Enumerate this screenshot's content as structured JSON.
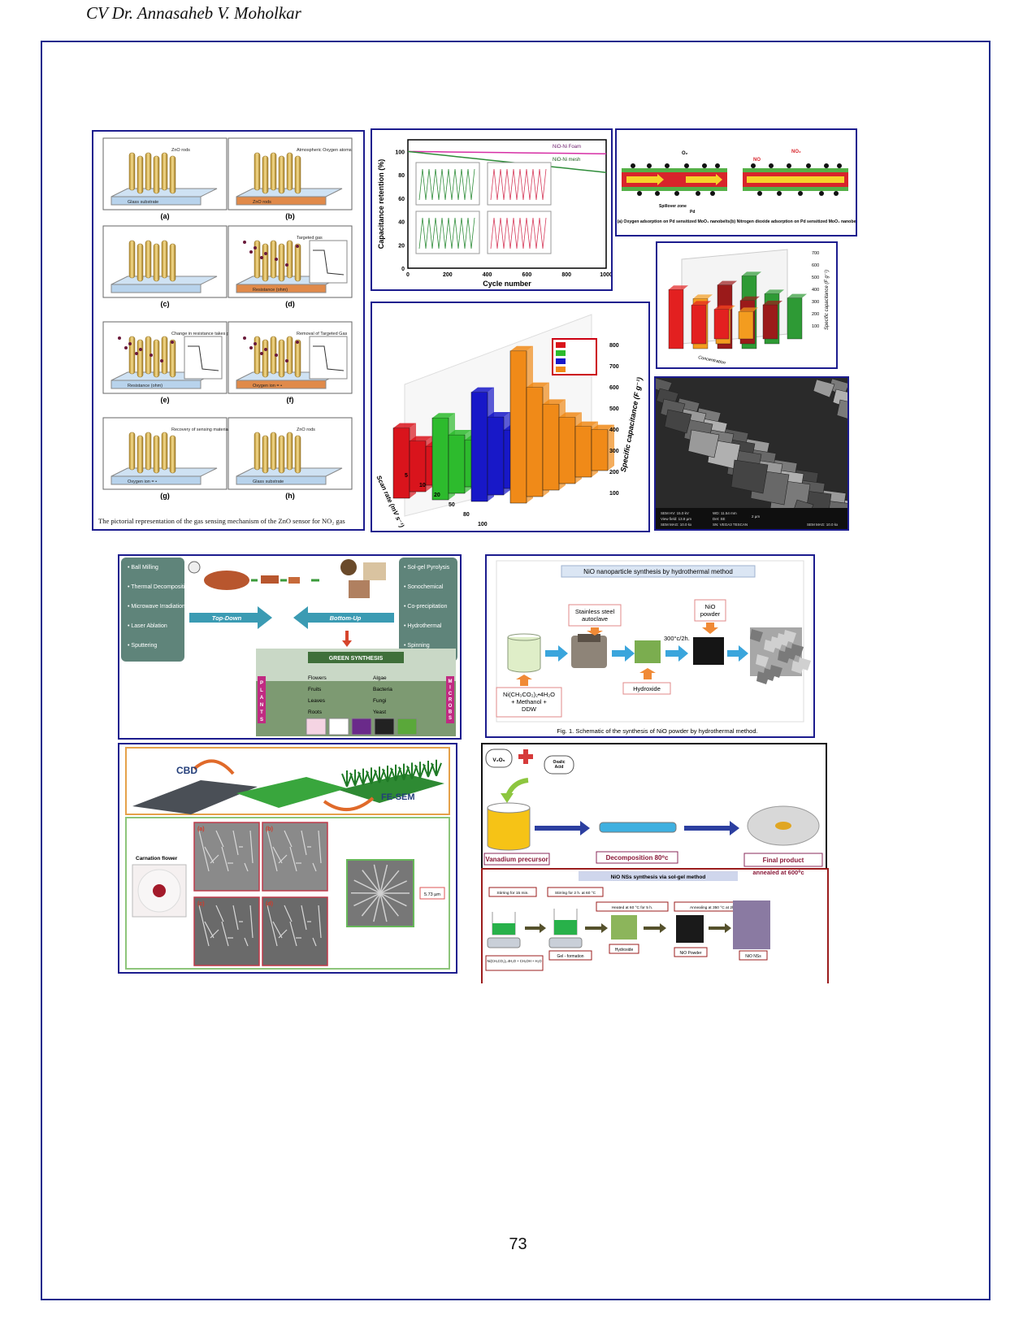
{
  "header": {
    "text": "CV Dr. Annasaheb V. Moholkar"
  },
  "page_number": "73",
  "panel_zno": {
    "tiles": [
      {
        "letter": "(a)",
        "labels": [
          "ZnO rods",
          "Glass substrate"
        ]
      },
      {
        "letter": "(b)",
        "labels": [
          "Atmospheric Oxygen atoms",
          "ZnO rods",
          "Glass substrate",
          "Heater ON"
        ]
      },
      {
        "letter": "(c)",
        "labels": []
      },
      {
        "letter": "(d)",
        "labels": [
          "Targeted gas",
          "Resistance (ohm)",
          "Time (s)",
          "Targeted Gas ON"
        ]
      },
      {
        "letter": "(e)",
        "labels": [
          "Change in resistance takes place in the sensing material",
          "Resistance (ohm)",
          "Time (s)",
          "Targeted Gas ON"
        ]
      },
      {
        "letter": "(f)",
        "labels": [
          "Removal of Targeted Gas",
          "Oxygen ion = •",
          "Resistance (ohm)",
          "Time (s)",
          "Targeted Gas OFF"
        ]
      },
      {
        "letter": "(g)",
        "labels": [
          "Recovery of sensing material",
          "Oxygen ion = •"
        ]
      },
      {
        "letter": "(h)",
        "labels": [
          "ZnO rods",
          "Glass substrate"
        ]
      }
    ],
    "caption": "The pictorial representation of the gas sensing mechanism of the ZnO sensor for NO₂ gas"
  },
  "panel_retention": {
    "ylabel": "Capacitance retention (%)",
    "xlabel": "Cycle number",
    "legend": [
      "NiO-Ni Foam",
      "NiO-Ni mesh"
    ]
  },
  "panel_pd": {
    "left_caption": "(a) Oxygen adsorption on Pd sensitized MoO₃ nanobelts",
    "right_caption": "(b) Nitrogen dioxide adsorption on Pd sensitized MoO₃ nanobelts",
    "labels": [
      "O₂",
      "Spillover zone",
      "Pd",
      "NO₂",
      "NO"
    ]
  },
  "panel_koh_small": {
    "zlabel": "Specific capacitance (F g⁻¹)",
    "xlabel": "Concentration",
    "ticks": [
      "700",
      "600",
      "500",
      "400",
      "300",
      "200",
      "100"
    ]
  },
  "panel_koh_large": {
    "zlabel": "Specific capacitance (F g⁻¹)",
    "xlabel": "Scan rate (mV s⁻¹)",
    "scan_ticks": [
      "5",
      "10",
      "20",
      "50",
      "80",
      "100"
    ],
    "z_ticks": [
      "800",
      "700",
      "600",
      "500",
      "400",
      "300",
      "200",
      "100"
    ]
  },
  "panel_sem": {
    "info": [
      "SEM HV: 15.0 kV",
      "View field: 13.8 µm",
      "SEM MAG: 10.0 kx",
      "WD: 11.54 mm",
      "Det: SE",
      "SN: VEGA3 TESCAN",
      "2 µm",
      "SEM MAG: 10.0 kx"
    ]
  },
  "panel_green": {
    "left_list": [
      "Ball Milling",
      "Thermal Decomposition",
      "Microwave Irradiation",
      "Laser Ablation",
      "Sputtering"
    ],
    "right_list": [
      "Sol-gel Pyrolysis",
      "Sonochemical",
      "Co-precipitation",
      "Hydrothermal",
      "Spinning"
    ],
    "top_down": "Top-Down",
    "bottom_up": "Bottom-Up",
    "green": "GREEN SYNTHESIS",
    "plants_items": [
      "Flowers",
      "Fruits",
      "Leaves",
      "Roots"
    ],
    "microbes_items": [
      "Algae",
      "Bacteria",
      "Fungi",
      "Yeast"
    ],
    "plants": "PLANTS",
    "microbes": "MICROBS"
  },
  "panel_nio_hydro": {
    "title": "NiO nanoparticle synthesis by hydrothermal method",
    "autoclave": "Stainless steel autoclave",
    "powder": "NiO powder",
    "temp": "300°c/2h.",
    "hydroxide": "Hydroxide",
    "precursor": [
      "Ni(CH₃CO₂)₂•4H₂O",
      "+ Methanol +",
      "DDW"
    ],
    "caption": "Fig. 1. Schematic of the synthesis of NiO powder by hydrothermal method."
  },
  "panel_cbd": {
    "cbd": "CBD",
    "fesem": "FE-SEM",
    "flower": "Carnation flower",
    "scale": "5.73 µm",
    "letters": [
      "(a)",
      "(b)",
      "(c)",
      "(d)"
    ]
  },
  "panel_vanadium": {
    "v2o5": "V₂O₅",
    "oxalic": "Oxalic Acid",
    "precursor": "Vanadium precursor",
    "decomp": "Decomposition 80⁰c",
    "final": "Final product",
    "final_sub": "annealed at 600⁰c"
  },
  "panel_solgel": {
    "title": "NiO NSs synthesis via sol-gel method",
    "steps": [
      "Stirring for 15 min.",
      "Stirring for 2 h. at 60 °C",
      "Heated at 60 °C for 5 h.",
      "Annealing at 350 °C at 2h."
    ],
    "labels": [
      "Ni(CH₃CO₂)₂.4H₂O + CH₃OH + H₂O",
      "Gel - formation",
      "Hydroxide",
      "NiO Powder",
      "NiO NSs"
    ]
  }
}
